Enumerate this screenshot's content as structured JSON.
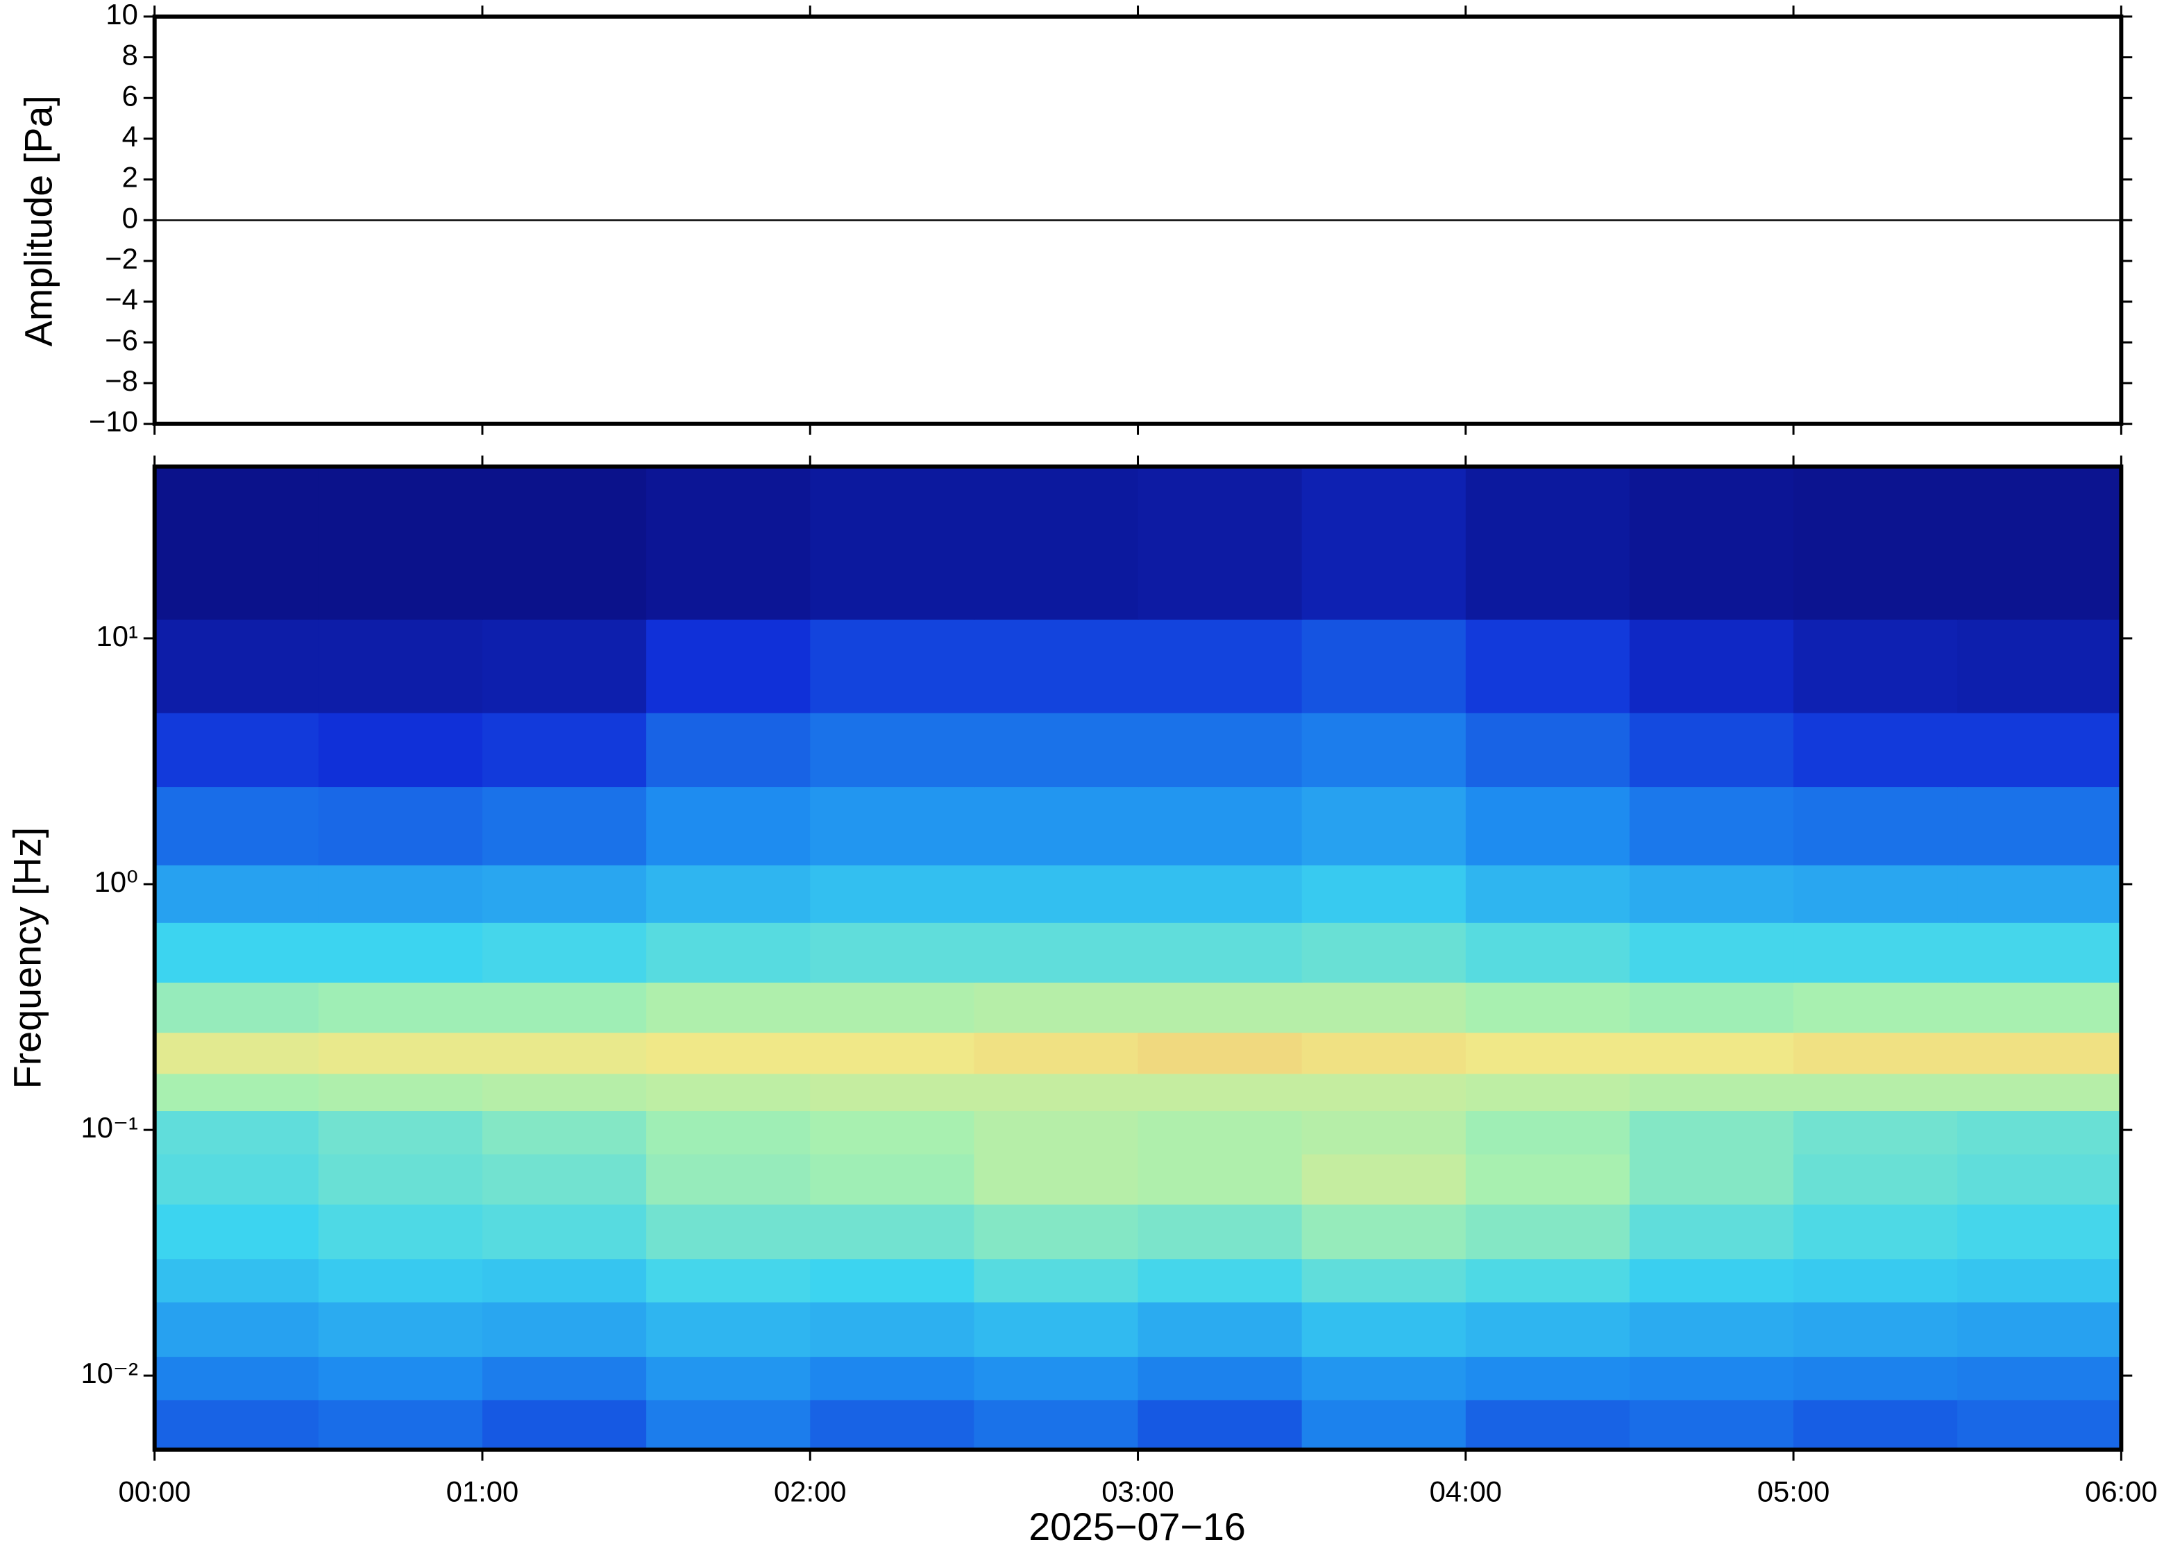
{
  "chart_data": [
    {
      "type": "line",
      "ylabel": "Amplitude [Pa]",
      "x": [
        "00:00",
        "01:00",
        "02:00",
        "03:00",
        "04:00",
        "05:00",
        "06:00"
      ],
      "values": [
        0,
        0,
        0,
        0,
        0,
        0,
        0
      ],
      "color": "#000000",
      "xlim": [
        "00:00",
        "06:00"
      ],
      "ylim": [
        -10,
        10
      ],
      "yticks": [
        {
          "value": -10,
          "label": "−10"
        },
        {
          "value": -8,
          "label": "−8"
        },
        {
          "value": -6,
          "label": "−6"
        },
        {
          "value": -4,
          "label": "−4"
        },
        {
          "value": -2,
          "label": "−2"
        },
        0,
        2,
        4,
        6,
        8,
        10
      ]
    },
    {
      "type": "heatmap",
      "ylabel": "Frequency [Hz]",
      "xlabel": "2025−07−16",
      "log_y": true,
      "xlim": [
        "00:00",
        "06:00"
      ],
      "ylim": [
        0.005,
        50
      ],
      "xticks": [
        "00:00",
        "01:00",
        "02:00",
        "03:00",
        "04:00",
        "05:00",
        "06:00"
      ],
      "yticks": [
        {
          "value": 0.01,
          "label": "10⁻²"
        },
        {
          "value": 0.1,
          "label": "10⁻¹"
        },
        {
          "value": 1,
          "label": "10⁰"
        },
        {
          "value": 10,
          "label": "10¹"
        }
      ],
      "x": [
        "00:00",
        "00:30",
        "01:00",
        "01:30",
        "02:00",
        "02:30",
        "03:00",
        "03:30",
        "04:00",
        "04:30",
        "05:00",
        "05:30"
      ],
      "y_edges": [
        0.005,
        0.008,
        0.012,
        0.02,
        0.03,
        0.05,
        0.08,
        0.12,
        0.17,
        0.25,
        0.4,
        0.7,
        1.2,
        2.5,
        5,
        12,
        50
      ],
      "colormap": [
        {
          "value": 0,
          "color": "#0a0a78"
        },
        {
          "value": 0.2,
          "color": "#1030d8"
        },
        {
          "value": 0.38,
          "color": "#1e8cf0"
        },
        {
          "value": 0.52,
          "color": "#3cd4f0"
        },
        {
          "value": 0.64,
          "color": "#a8f0b0"
        },
        {
          "value": 0.74,
          "color": "#f0e888"
        },
        {
          "value": 0.86,
          "color": "#f09050"
        }
      ],
      "z": [
        [
          0.3,
          0.32,
          0.28,
          0.35,
          0.3,
          0.33,
          0.28,
          0.36,
          0.3,
          0.32,
          0.29,
          0.31
        ],
        [
          0.36,
          0.38,
          0.35,
          0.4,
          0.37,
          0.39,
          0.36,
          0.4,
          0.38,
          0.37,
          0.36,
          0.35
        ],
        [
          0.42,
          0.44,
          0.43,
          0.46,
          0.45,
          0.47,
          0.44,
          0.48,
          0.46,
          0.44,
          0.43,
          0.42
        ],
        [
          0.48,
          0.5,
          0.49,
          0.53,
          0.52,
          0.55,
          0.53,
          0.56,
          0.54,
          0.51,
          0.5,
          0.49
        ],
        [
          0.52,
          0.54,
          0.55,
          0.58,
          0.58,
          0.6,
          0.59,
          0.62,
          0.6,
          0.56,
          0.54,
          0.53
        ],
        [
          0.55,
          0.57,
          0.58,
          0.62,
          0.63,
          0.66,
          0.65,
          0.68,
          0.64,
          0.6,
          0.57,
          0.56
        ],
        [
          0.56,
          0.58,
          0.6,
          0.63,
          0.64,
          0.66,
          0.65,
          0.66,
          0.63,
          0.6,
          0.58,
          0.57
        ],
        [
          0.64,
          0.65,
          0.66,
          0.67,
          0.68,
          0.68,
          0.68,
          0.68,
          0.67,
          0.66,
          0.66,
          0.66
        ],
        [
          0.72,
          0.73,
          0.73,
          0.74,
          0.74,
          0.75,
          0.76,
          0.75,
          0.74,
          0.74,
          0.75,
          0.75
        ],
        [
          0.62,
          0.63,
          0.63,
          0.65,
          0.65,
          0.66,
          0.66,
          0.66,
          0.64,
          0.63,
          0.64,
          0.64
        ],
        [
          0.52,
          0.52,
          0.53,
          0.55,
          0.56,
          0.56,
          0.56,
          0.57,
          0.55,
          0.53,
          0.53,
          0.53
        ],
        [
          0.42,
          0.42,
          0.43,
          0.46,
          0.48,
          0.48,
          0.48,
          0.5,
          0.46,
          0.44,
          0.43,
          0.43
        ],
        [
          0.32,
          0.31,
          0.33,
          0.38,
          0.4,
          0.4,
          0.4,
          0.42,
          0.38,
          0.34,
          0.33,
          0.33
        ],
        [
          0.22,
          0.2,
          0.22,
          0.3,
          0.33,
          0.33,
          0.33,
          0.35,
          0.3,
          0.25,
          0.22,
          0.22
        ],
        [
          0.1,
          0.1,
          0.11,
          0.2,
          0.24,
          0.24,
          0.24,
          0.27,
          0.22,
          0.16,
          0.12,
          0.11
        ],
        [
          0.04,
          0.04,
          0.04,
          0.06,
          0.08,
          0.08,
          0.09,
          0.12,
          0.08,
          0.06,
          0.05,
          0.05
        ]
      ]
    }
  ]
}
